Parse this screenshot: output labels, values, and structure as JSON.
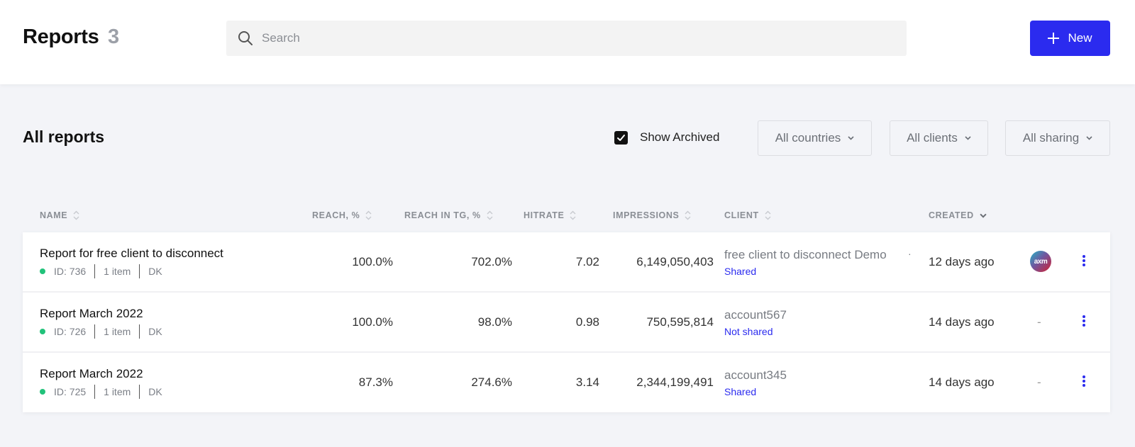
{
  "header": {
    "title": "Reports",
    "count": "3",
    "search_placeholder": "Search",
    "new_button_label": "New"
  },
  "toolbar": {
    "section_title": "All reports",
    "show_archived_label": "Show Archived",
    "show_archived_checked": true,
    "filters": [
      "All countries",
      "All clients",
      "All sharing"
    ]
  },
  "table": {
    "columns": {
      "name": "NAME",
      "reach": "REACH, %",
      "reach_tg": "REACH IN TG, %",
      "hitrate": "HITRATE",
      "impressions": "IMPRESSIONS",
      "client": "CLIENT",
      "created": "CREATED"
    },
    "rows": [
      {
        "name": "Report for free client to disconnect",
        "id": "ID: 736",
        "items": "1 item",
        "country": "DK",
        "reach": "100.0%",
        "reach_tg": "702.0%",
        "hitrate": "7.02",
        "impressions": "6,149,050,403",
        "client": "free client to disconnect Demo",
        "client_sep": "·",
        "sharing": "Shared",
        "created": "12 days ago",
        "logo_text": "axm"
      },
      {
        "name": "Report March 2022",
        "id": "ID: 726",
        "items": "1 item",
        "country": "DK",
        "reach": "100.0%",
        "reach_tg": "98.0%",
        "hitrate": "0.98",
        "impressions": "750,595,814",
        "client": "account567",
        "sharing": "Not shared",
        "created": "14 days ago",
        "logo_placeholder": "-"
      },
      {
        "name": "Report March 2022",
        "id": "ID: 725",
        "items": "1 item",
        "country": "DK",
        "reach": "87.3%",
        "reach_tg": "274.6%",
        "hitrate": "3.14",
        "impressions": "2,344,199,491",
        "client": "account345",
        "sharing": "Shared",
        "created": "14 days ago",
        "logo_placeholder": "-"
      }
    ]
  },
  "colors": {
    "accent": "#2b2bef",
    "status_dot": "#21c27a",
    "background": "#f3f4f8"
  }
}
